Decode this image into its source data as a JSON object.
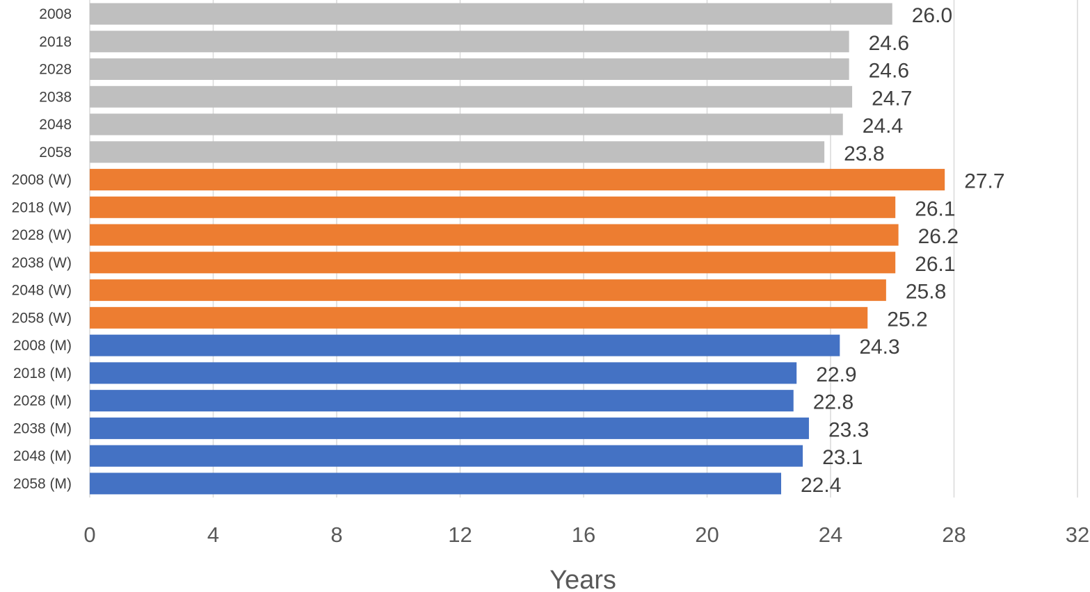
{
  "chart_data": {
    "type": "bar",
    "orientation": "horizontal",
    "title": "",
    "xlabel": "Years",
    "ylabel": "",
    "xlim": [
      0,
      32
    ],
    "x_ticks": [
      0,
      4,
      8,
      12,
      16,
      20,
      24,
      28,
      32
    ],
    "grid": "vertical",
    "legend": "none",
    "categories": [
      "2008",
      "2018",
      "2028",
      "2038",
      "2048",
      "2058",
      "2008 (W)",
      "2018 (W)",
      "2028 (W)",
      "2038 (W)",
      "2048 (W)",
      "2058 (W)",
      "2008 (M)",
      "2018 (M)",
      "2028 (M)",
      "2038 (M)",
      "2048 (M)",
      "2058 (M)"
    ],
    "values": [
      26.0,
      24.6,
      24.6,
      24.7,
      24.4,
      23.8,
      27.7,
      26.1,
      26.2,
      26.1,
      25.8,
      25.2,
      24.3,
      22.9,
      22.8,
      23.3,
      23.1,
      22.4
    ],
    "value_labels": [
      "26.0",
      "24.6",
      "24.6",
      "24.7",
      "24.4",
      "23.8",
      "27.7",
      "26.1",
      "26.2",
      "26.1",
      "25.8",
      "25.2",
      "24.3",
      "22.9",
      "22.8",
      "23.3",
      "23.1",
      "22.4"
    ],
    "colors": [
      "#bfbfbf",
      "#bfbfbf",
      "#bfbfbf",
      "#bfbfbf",
      "#bfbfbf",
      "#bfbfbf",
      "#ed7d31",
      "#ed7d31",
      "#ed7d31",
      "#ed7d31",
      "#ed7d31",
      "#ed7d31",
      "#4472c4",
      "#4472c4",
      "#4472c4",
      "#4472c4",
      "#4472c4",
      "#4472c4"
    ]
  }
}
